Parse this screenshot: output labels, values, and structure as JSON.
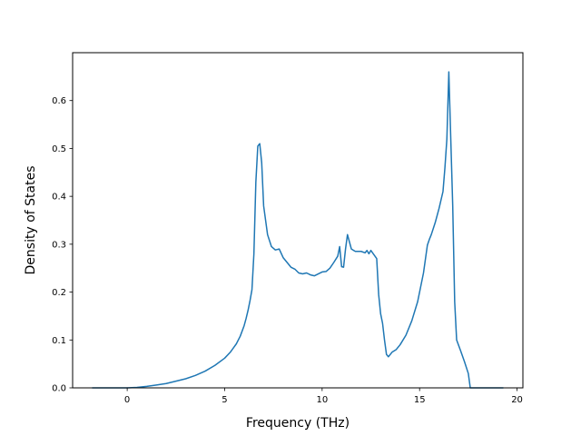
{
  "chart_data": {
    "type": "line",
    "title": "",
    "xlabel": "Frequency (THz)",
    "ylabel": "Density of States",
    "xlim": [
      -2.8,
      20.3
    ],
    "ylim": [
      0,
      0.7
    ],
    "xticks": [
      0,
      5,
      10,
      15,
      20
    ],
    "xtick_labels": [
      "0",
      "5",
      "10",
      "15",
      "20"
    ],
    "yticks": [
      0.0,
      0.1,
      0.2,
      0.3,
      0.4,
      0.5,
      0.6
    ],
    "ytick_labels": [
      "0.0",
      "0.1",
      "0.2",
      "0.3",
      "0.4",
      "0.5",
      "0.6"
    ],
    "grid": false,
    "series": [
      {
        "color": "#1f77b4",
        "x": [
          -1.8,
          -1.0,
          0.0,
          0.5,
          1.0,
          1.5,
          2.0,
          2.5,
          3.0,
          3.5,
          4.0,
          4.5,
          5.0,
          5.3,
          5.6,
          5.8,
          6.0,
          6.1,
          6.2,
          6.3,
          6.4,
          6.5,
          6.6,
          6.7,
          6.8,
          6.9,
          7.0,
          7.2,
          7.4,
          7.6,
          7.8,
          8.0,
          8.2,
          8.4,
          8.6,
          8.8,
          9.0,
          9.2,
          9.4,
          9.6,
          9.8,
          10.0,
          10.2,
          10.4,
          10.6,
          10.8,
          10.9,
          11.0,
          11.1,
          11.2,
          11.3,
          11.5,
          11.7,
          12.0,
          12.2,
          12.3,
          12.4,
          12.5,
          12.8,
          12.9,
          13.0,
          13.1,
          13.2,
          13.3,
          13.4,
          13.6,
          13.8,
          14.0,
          14.3,
          14.6,
          14.9,
          15.2,
          15.4,
          15.5,
          15.6,
          15.8,
          16.0,
          16.2,
          16.3,
          16.4,
          16.5,
          16.6,
          16.7,
          16.8,
          16.9,
          17.1,
          17.3,
          17.5,
          17.6,
          17.8,
          18.5,
          19.3
        ],
        "y": [
          0.0,
          0.0,
          0.0,
          0.001,
          0.003,
          0.006,
          0.009,
          0.014,
          0.019,
          0.026,
          0.035,
          0.047,
          0.062,
          0.075,
          0.092,
          0.108,
          0.13,
          0.145,
          0.162,
          0.182,
          0.205,
          0.28,
          0.43,
          0.505,
          0.51,
          0.47,
          0.38,
          0.32,
          0.295,
          0.288,
          0.29,
          0.272,
          0.262,
          0.252,
          0.248,
          0.24,
          0.238,
          0.24,
          0.236,
          0.234,
          0.238,
          0.242,
          0.243,
          0.25,
          0.262,
          0.275,
          0.295,
          0.253,
          0.252,
          0.29,
          0.32,
          0.29,
          0.285,
          0.285,
          0.282,
          0.287,
          0.28,
          0.287,
          0.27,
          0.195,
          0.155,
          0.135,
          0.1,
          0.07,
          0.065,
          0.075,
          0.08,
          0.09,
          0.11,
          0.14,
          0.18,
          0.24,
          0.298,
          0.31,
          0.32,
          0.345,
          0.375,
          0.41,
          0.46,
          0.52,
          0.66,
          0.52,
          0.38,
          0.18,
          0.1,
          0.078,
          0.055,
          0.03,
          0.0,
          0.0,
          0.0,
          0.0
        ]
      }
    ]
  }
}
